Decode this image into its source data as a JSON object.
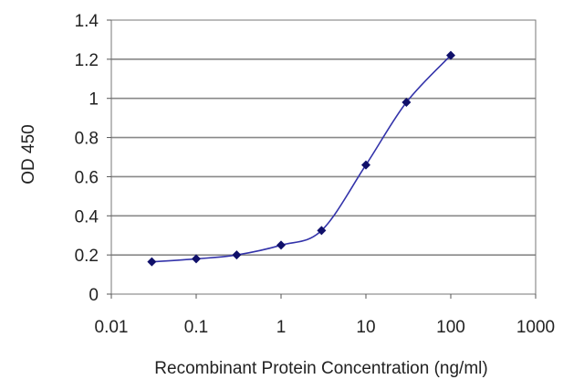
{
  "chart_data": {
    "type": "line",
    "title": "",
    "xlabel": "Recombinant Protein Concentration (ng/ml)",
    "ylabel": "OD 450",
    "x_scale": "log",
    "xlim": [
      0.01,
      1000
    ],
    "ylim": [
      0,
      1.4
    ],
    "x_ticks": [
      "0.01",
      "0.1",
      "1",
      "10",
      "100",
      "1000"
    ],
    "y_ticks": [
      "0",
      "0.2",
      "0.4",
      "0.6",
      "0.8",
      "1",
      "1.2",
      "1.4"
    ],
    "grid": "horizontal",
    "series": [
      {
        "x": [
          0.03,
          0.1,
          0.3,
          1,
          3,
          10,
          30,
          100
        ],
        "y": [
          0.165,
          0.18,
          0.2,
          0.25,
          0.325,
          0.66,
          0.98,
          1.22
        ]
      }
    ],
    "colors": {
      "line": "#3333aa",
      "marker": "#10106a",
      "grid": "#888888",
      "plot_border": "#777777"
    }
  }
}
